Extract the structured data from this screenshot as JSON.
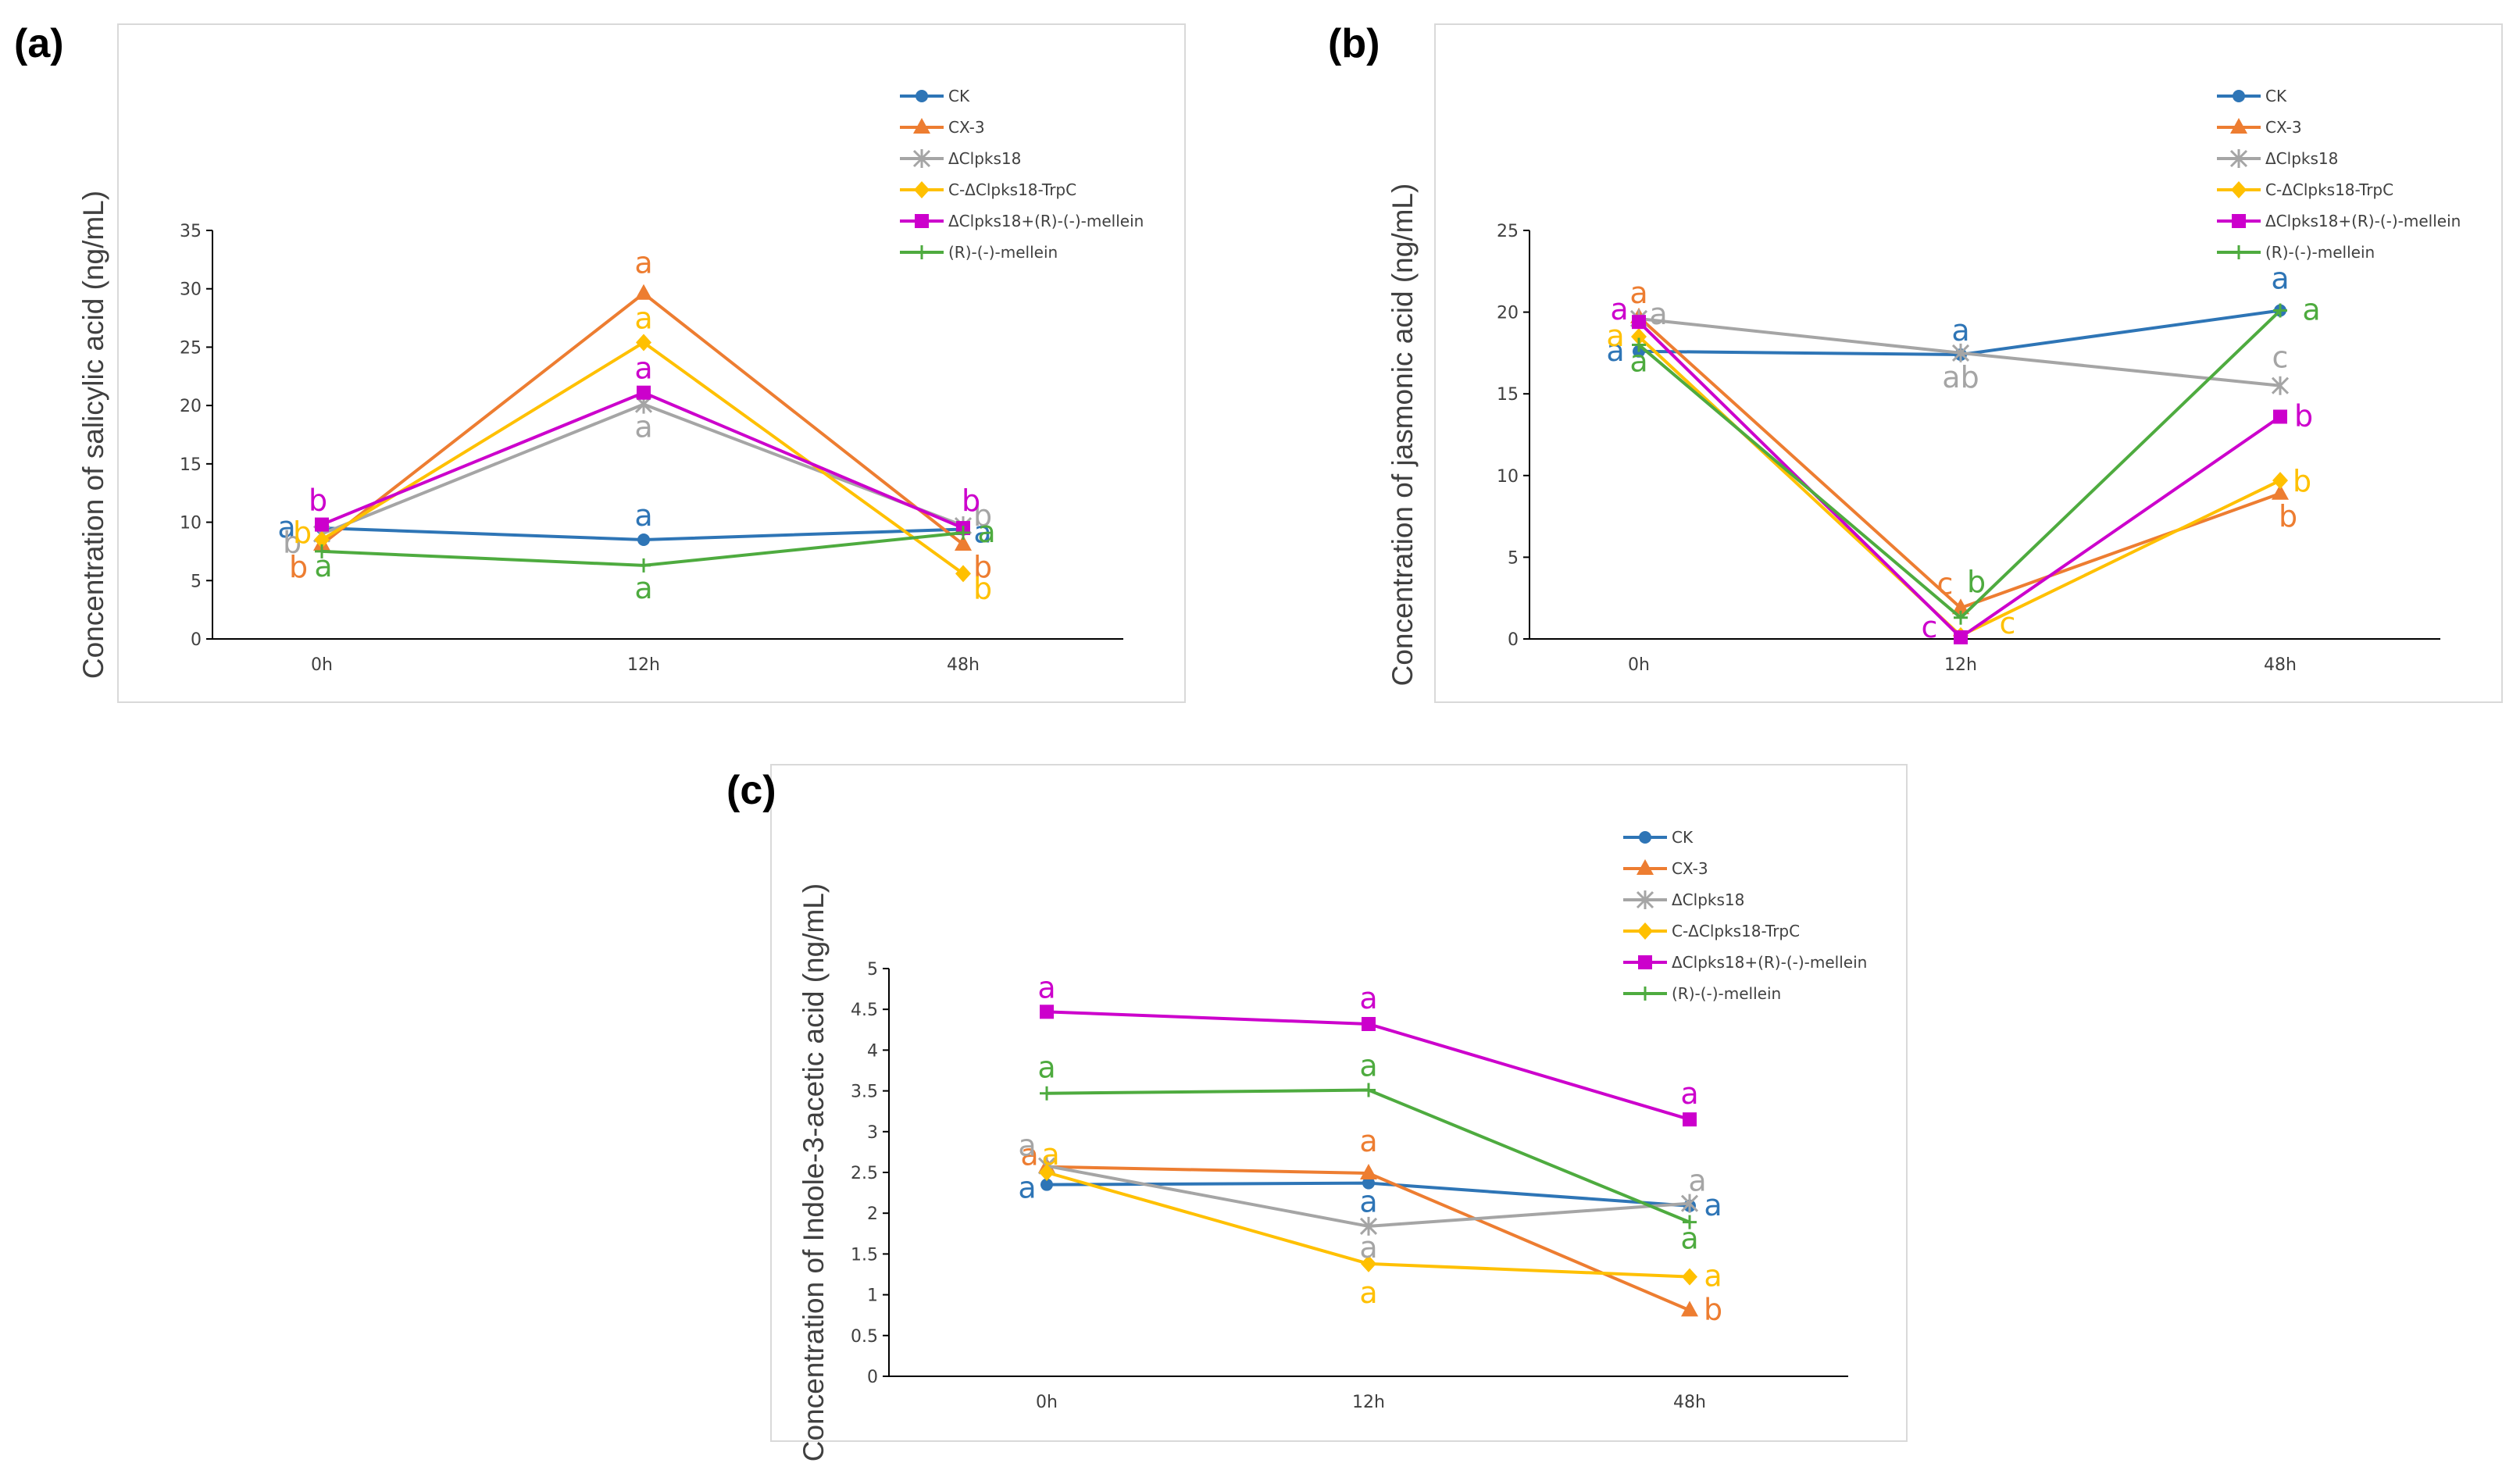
{
  "panel_labels": [
    "(a)",
    "(b)",
    "(c)"
  ],
  "colors": {
    "CK": "#2e75b6",
    "CX-3": "#ed7d31",
    "ΔClpks18": "#a5a5a5",
    "C-ΔClpks18-TrpC": "#ffc000",
    "ΔClpks18+(R)-(-)-mellein": "#cc00cc",
    "(R)-(-)-mellein": "#4eab3f"
  },
  "chart_data": [
    {
      "type": "line",
      "panel": "(a)",
      "title": "",
      "xlabel": "",
      "ylabel": "Concentration of salicylic acid (ng/mL)",
      "categories": [
        "0h",
        "12h",
        "48h"
      ],
      "ylim": [
        0,
        35
      ],
      "yticks": [
        "0",
        "5",
        "10",
        "15",
        "20",
        "25",
        "30",
        "35"
      ],
      "legend": "top-right",
      "series": [
        {
          "name": "CK",
          "marker": "circle",
          "values": [
            9.5,
            8.5,
            9.4
          ],
          "labels": [
            "a",
            "a",
            "a"
          ]
        },
        {
          "name": "CX-3",
          "marker": "triangle",
          "values": [
            8.1,
            29.6,
            8.1
          ],
          "labels": [
            "b",
            "a",
            "b"
          ]
        },
        {
          "name": "ΔClpks18",
          "marker": "star",
          "values": [
            9.0,
            20.1,
            9.7
          ],
          "labels": [
            "b",
            "a",
            "b"
          ]
        },
        {
          "name": "C-ΔClpks18-TrpC",
          "marker": "diamond",
          "values": [
            8.5,
            25.4,
            5.6
          ],
          "labels": [
            "b",
            "a",
            "b"
          ]
        },
        {
          "name": "ΔClpks18+(R)-(-)-mellein",
          "marker": "square",
          "values": [
            9.8,
            21.1,
            9.5
          ],
          "labels": [
            "b",
            "a",
            "b"
          ]
        },
        {
          "name": "(R)-(-)-mellein",
          "marker": "plus",
          "values": [
            7.5,
            6.3,
            9.1
          ],
          "labels": [
            "a",
            "a",
            "a"
          ]
        }
      ]
    },
    {
      "type": "line",
      "panel": "(b)",
      "title": "",
      "xlabel": "",
      "ylabel": "Concentration of jasmonic acid (ng/mL)",
      "categories": [
        "0h",
        "12h",
        "48h"
      ],
      "ylim": [
        0,
        25
      ],
      "yticks": [
        "0",
        "5",
        "10",
        "15",
        "20",
        "25"
      ],
      "legend": "top-right",
      "series": [
        {
          "name": "CK",
          "marker": "circle",
          "values": [
            17.6,
            17.4,
            20.1
          ],
          "labels": [
            "a",
            "a",
            "a"
          ]
        },
        {
          "name": "CX-3",
          "marker": "triangle",
          "values": [
            19.7,
            1.9,
            8.9
          ],
          "labels": [
            "a",
            "c",
            "b"
          ]
        },
        {
          "name": "ΔClpks18",
          "marker": "star",
          "values": [
            19.6,
            17.5,
            15.5
          ],
          "labels": [
            "a",
            "ab",
            "c"
          ]
        },
        {
          "name": "C-ΔClpks18-TrpC",
          "marker": "diamond",
          "values": [
            18.5,
            0.2,
            9.7
          ],
          "labels": [
            "a",
            "c",
            "b"
          ]
        },
        {
          "name": "ΔClpks18+(R)-(-)-mellein",
          "marker": "square",
          "values": [
            19.4,
            0.1,
            13.6
          ],
          "labels": [
            "a",
            "c",
            "b"
          ]
        },
        {
          "name": "(R)-(-)-mellein",
          "marker": "plus",
          "values": [
            18.0,
            1.3,
            20.1
          ],
          "labels": [
            "a",
            "b",
            "a"
          ]
        }
      ]
    },
    {
      "type": "line",
      "panel": "(c)",
      "title": "",
      "xlabel": "",
      "ylabel": "Concentration of Indole-3-acetic acid (ng/mL)",
      "categories": [
        "0h",
        "12h",
        "48h"
      ],
      "ylim": [
        0,
        5
      ],
      "yticks": [
        "0",
        "0.5",
        "1",
        "1.5",
        "2",
        "2.5",
        "3",
        "3.5",
        "4",
        "4.5",
        "5"
      ],
      "legend": "top-right",
      "series": [
        {
          "name": "CK",
          "marker": "circle",
          "values": [
            2.35,
            2.37,
            2.09
          ],
          "labels": [
            "a",
            "a",
            "a"
          ]
        },
        {
          "name": "CX-3",
          "marker": "triangle",
          "values": [
            2.57,
            2.49,
            0.81
          ],
          "labels": [
            "a",
            "a",
            "b"
          ]
        },
        {
          "name": "ΔClpks18",
          "marker": "star",
          "values": [
            2.58,
            1.84,
            2.12
          ],
          "labels": [
            "a",
            "a",
            "a"
          ]
        },
        {
          "name": "C-ΔClpks18-TrpC",
          "marker": "diamond",
          "values": [
            2.5,
            1.38,
            1.22
          ],
          "labels": [
            "a",
            "a",
            "a"
          ]
        },
        {
          "name": "ΔClpks18+(R)-(-)-mellein",
          "marker": "square",
          "values": [
            4.47,
            4.32,
            3.15
          ],
          "labels": [
            "a",
            "a",
            "a"
          ]
        },
        {
          "name": "(R)-(-)-mellein",
          "marker": "plus",
          "values": [
            3.47,
            3.51,
            1.89
          ],
          "labels": [
            "a",
            "a",
            "a"
          ]
        }
      ]
    }
  ]
}
